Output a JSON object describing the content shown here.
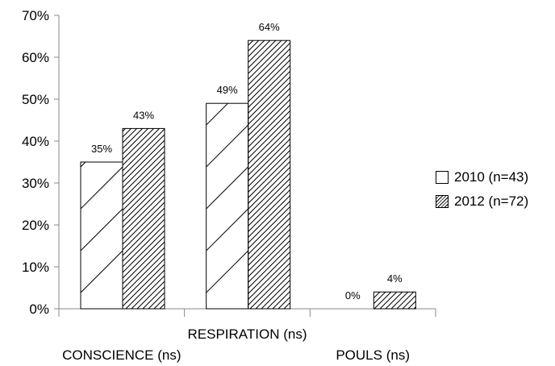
{
  "chart_data": {
    "type": "bar",
    "title": "",
    "categories": [
      "CONSCIENCE (ns)",
      "RESPIRATION (ns)",
      "POULS (ns)"
    ],
    "series": [
      {
        "name": "2010 (n=43)",
        "values": [
          35,
          49,
          0
        ],
        "labels": [
          "35%",
          "49%",
          "0%"
        ],
        "fill": "sparse-hatch"
      },
      {
        "name": "2012 (n=72)",
        "values": [
          43,
          64,
          4
        ],
        "labels": [
          "43%",
          "64%",
          "4%"
        ],
        "fill": "dense-hatch"
      }
    ],
    "ylim": [
      0,
      70
    ],
    "yticks": [
      "0%",
      "10%",
      "20%",
      "30%",
      "40%",
      "50%",
      "60%",
      "70%"
    ],
    "grid": false,
    "legend_position": "right"
  },
  "colors": {
    "bar_stroke": "#000000",
    "axis": "#888888",
    "background": "#ffffff"
  }
}
